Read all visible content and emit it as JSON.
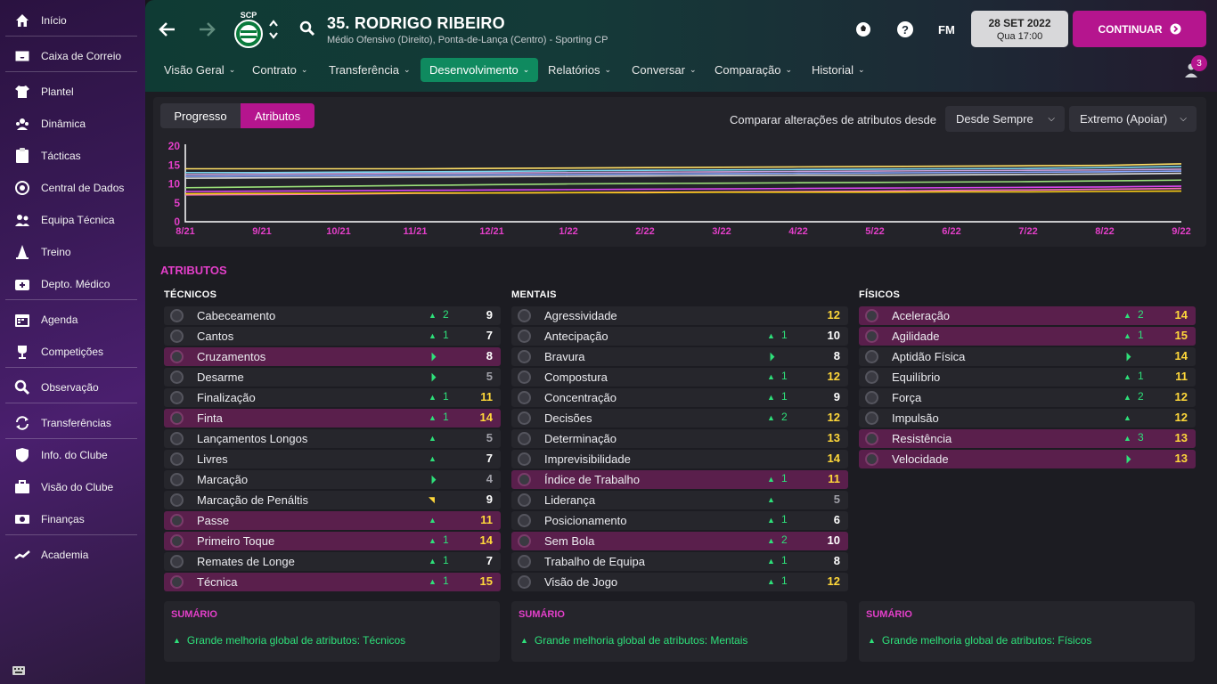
{
  "sidebar": {
    "items": [
      {
        "label": "Início",
        "icon": "home-icon"
      },
      {
        "label": "Caixa de Correio",
        "icon": "inbox-icon"
      },
      {
        "label": "Plantel",
        "icon": "shirt-icon"
      },
      {
        "label": "Dinâmica",
        "icon": "dynamics-icon"
      },
      {
        "label": "Tácticas",
        "icon": "tactics-board-icon"
      },
      {
        "label": "Central de Dados",
        "icon": "data-hub-icon"
      },
      {
        "label": "Equipa Técnica",
        "icon": "staff-icon"
      },
      {
        "label": "Treino",
        "icon": "training-cone-icon"
      },
      {
        "label": "Depto. Médico",
        "icon": "medical-kit-icon"
      },
      {
        "label": "Agenda",
        "icon": "calendar-icon"
      },
      {
        "label": "Competições",
        "icon": "trophy-icon"
      },
      {
        "label": "Observação",
        "icon": "magnifier-icon"
      },
      {
        "label": "Transferências",
        "icon": "transfer-arrows-icon"
      },
      {
        "label": "Info. do Clube",
        "icon": "club-shield-icon"
      },
      {
        "label": "Visão do Clube",
        "icon": "briefcase-icon"
      },
      {
        "label": "Finanças",
        "icon": "money-icon"
      },
      {
        "label": "Academia",
        "icon": "academy-trend-icon"
      }
    ]
  },
  "header": {
    "club_badge_text": "SCP",
    "player_name": "35. RODRIGO RIBEIRO",
    "player_subtitle": "Médio Ofensivo (Direito), Ponta-de-Lança (Centro) - Sporting CP",
    "fm_label": "FM",
    "date": "28 SET 2022",
    "time": "Qua 17:00",
    "continue_label": "CONTINUAR",
    "notifications": "3",
    "tabs": [
      {
        "label": "Visão Geral"
      },
      {
        "label": "Contrato"
      },
      {
        "label": "Transferência"
      },
      {
        "label": "Desenvolvimento"
      },
      {
        "label": "Relatórios"
      },
      {
        "label": "Conversar"
      },
      {
        "label": "Comparação"
      },
      {
        "label": "Historial"
      }
    ],
    "active_tab": "Desenvolvimento"
  },
  "controls": {
    "seg_progress": "Progresso",
    "seg_attributes": "Atributos",
    "compare_label": "Comparar alterações de atributos desde",
    "since_dropdown": "Desde Sempre",
    "role_dropdown": "Extremo (Apoiar)"
  },
  "colors": {
    "accent_magenta": "#b5158e",
    "highlight_row": "#5a1f4c",
    "active_tab": "#0f8a5f",
    "positive": "#2ee07a",
    "good_value": "#ffd83a"
  },
  "chart_data": {
    "type": "line",
    "x": [
      "8/21",
      "9/21",
      "10/21",
      "11/21",
      "12/21",
      "1/22",
      "2/22",
      "3/22",
      "4/22",
      "5/22",
      "6/22",
      "7/22",
      "8/22",
      "9/22"
    ],
    "yticks": [
      "20",
      "15",
      "10",
      "5",
      "0"
    ],
    "ylim": [
      0,
      20
    ],
    "grid": false,
    "legend": "none",
    "series": [
      {
        "color": "#ffe066",
        "values": [
          14,
          14,
          14,
          14,
          14.1,
          14.2,
          14.3,
          14.4,
          14.5,
          14.6,
          14.7,
          14.8,
          14.9,
          15.3
        ]
      },
      {
        "color": "#7ad7f0",
        "values": [
          13,
          13,
          13.1,
          13.2,
          13.3,
          13.5,
          13.6,
          13.7,
          13.8,
          13.9,
          14,
          14.1,
          14.3,
          14.6
        ]
      },
      {
        "color": "#c9a0dc",
        "values": [
          12.5,
          12.6,
          12.7,
          12.8,
          12.9,
          13,
          13.1,
          13.2,
          13.3,
          13.4,
          13.5,
          13.6,
          13.7,
          13.9
        ]
      },
      {
        "color": "#8aa8ff",
        "values": [
          12,
          12.1,
          12.2,
          12.3,
          12.4,
          12.5,
          12.6,
          12.7,
          12.8,
          12.9,
          13,
          13.1,
          13.2,
          13.4
        ]
      },
      {
        "color": "#e0e0e0",
        "values": [
          11.5,
          11.6,
          11.7,
          11.8,
          11.9,
          12,
          12.1,
          12.2,
          12.3,
          12.3,
          12.4,
          12.5,
          12.6,
          12.8
        ]
      },
      {
        "color": "#9be07a",
        "values": [
          9,
          9.2,
          9.4,
          9.6,
          9.8,
          10,
          10.1,
          10.2,
          10.3,
          10.4,
          10.5,
          10.6,
          10.8,
          11
        ]
      },
      {
        "color": "#d946ef",
        "values": [
          8,
          8.1,
          8.2,
          8.3,
          8.4,
          8.5,
          8.6,
          8.7,
          8.8,
          8.9,
          9,
          9.1,
          9.2,
          9.4
        ]
      },
      {
        "color": "#f472b6",
        "values": [
          7.1,
          7.2,
          7.3,
          7.5,
          7.6,
          7.7,
          7.8,
          7.9,
          8,
          8.1,
          8.3,
          8.4,
          8.6,
          8.8
        ]
      },
      {
        "color": "#facc15",
        "values": [
          7.4,
          7.5,
          7.5,
          7.6,
          7.6,
          7.7,
          7.7,
          7.8,
          7.8,
          7.8,
          7.9,
          7.9,
          8,
          8.1
        ]
      }
    ]
  },
  "attributes": {
    "section_title": "ATRIBUTOS",
    "columns": [
      {
        "title": "TÉCNICOS",
        "rows": [
          {
            "name": "Cabeceamento",
            "arrow": "up",
            "change": "2",
            "value": "9",
            "hl": false,
            "tier": "white"
          },
          {
            "name": "Cantos",
            "arrow": "up",
            "change": "1",
            "value": "7",
            "hl": false,
            "tier": "white"
          },
          {
            "name": "Cruzamentos",
            "arrow": "slight",
            "change": "",
            "value": "8",
            "hl": true,
            "tier": "white"
          },
          {
            "name": "Desarme",
            "arrow": "slight",
            "change": "",
            "value": "5",
            "hl": false,
            "tier": "grey"
          },
          {
            "name": "Finalização",
            "arrow": "up",
            "change": "1",
            "value": "11",
            "hl": false,
            "tier": "yellow"
          },
          {
            "name": "Finta",
            "arrow": "up",
            "change": "1",
            "value": "14",
            "hl": true,
            "tier": "yellow"
          },
          {
            "name": "Lançamentos Longos",
            "arrow": "up",
            "change": "",
            "value": "5",
            "hl": false,
            "tier": "grey"
          },
          {
            "name": "Livres",
            "arrow": "up",
            "change": "",
            "value": "7",
            "hl": false,
            "tier": "white"
          },
          {
            "name": "Marcação",
            "arrow": "slight",
            "change": "",
            "value": "4",
            "hl": false,
            "tier": "grey"
          },
          {
            "name": "Marcação de Penáltis",
            "arrow": "down",
            "change": "",
            "value": "9",
            "hl": false,
            "tier": "white"
          },
          {
            "name": "Passe",
            "arrow": "up",
            "change": "",
            "value": "11",
            "hl": true,
            "tier": "yellow"
          },
          {
            "name": "Primeiro Toque",
            "arrow": "up",
            "change": "1",
            "value": "14",
            "hl": true,
            "tier": "yellow"
          },
          {
            "name": "Remates de Longe",
            "arrow": "up",
            "change": "1",
            "value": "7",
            "hl": false,
            "tier": "white"
          },
          {
            "name": "Técnica",
            "arrow": "up",
            "change": "1",
            "value": "15",
            "hl": true,
            "tier": "yellow"
          }
        ],
        "summary_title": "SUMÁRIO",
        "summary_text": "Grande melhoria global de atributos: Técnicos"
      },
      {
        "title": "MENTAIS",
        "rows": [
          {
            "name": "Agressividade",
            "arrow": "",
            "change": "",
            "value": "12",
            "hl": false,
            "tier": "yellow"
          },
          {
            "name": "Antecipação",
            "arrow": "up",
            "change": "1",
            "value": "10",
            "hl": false,
            "tier": "white"
          },
          {
            "name": "Bravura",
            "arrow": "slight",
            "change": "",
            "value": "8",
            "hl": false,
            "tier": "white"
          },
          {
            "name": "Compostura",
            "arrow": "up",
            "change": "1",
            "value": "12",
            "hl": false,
            "tier": "yellow"
          },
          {
            "name": "Concentração",
            "arrow": "up",
            "change": "1",
            "value": "9",
            "hl": false,
            "tier": "white"
          },
          {
            "name": "Decisões",
            "arrow": "up",
            "change": "2",
            "value": "12",
            "hl": false,
            "tier": "yellow"
          },
          {
            "name": "Determinação",
            "arrow": "",
            "change": "",
            "value": "13",
            "hl": false,
            "tier": "yellow"
          },
          {
            "name": "Imprevisibilidade",
            "arrow": "",
            "change": "",
            "value": "14",
            "hl": false,
            "tier": "yellow"
          },
          {
            "name": "Índice de Trabalho",
            "arrow": "up",
            "change": "1",
            "value": "11",
            "hl": true,
            "tier": "yellow"
          },
          {
            "name": "Liderança",
            "arrow": "up",
            "change": "",
            "value": "5",
            "hl": false,
            "tier": "grey"
          },
          {
            "name": "Posicionamento",
            "arrow": "up",
            "change": "1",
            "value": "6",
            "hl": false,
            "tier": "white"
          },
          {
            "name": "Sem Bola",
            "arrow": "up",
            "change": "2",
            "value": "10",
            "hl": true,
            "tier": "white"
          },
          {
            "name": "Trabalho de Equipa",
            "arrow": "up",
            "change": "1",
            "value": "8",
            "hl": false,
            "tier": "white"
          },
          {
            "name": "Visão de Jogo",
            "arrow": "up",
            "change": "1",
            "value": "12",
            "hl": false,
            "tier": "yellow"
          }
        ],
        "summary_title": "SUMÁRIO",
        "summary_text": "Grande melhoria global de atributos: Mentais"
      },
      {
        "title": "FÍSICOS",
        "rows": [
          {
            "name": "Aceleração",
            "arrow": "up",
            "change": "2",
            "value": "14",
            "hl": true,
            "tier": "yellow"
          },
          {
            "name": "Agilidade",
            "arrow": "up",
            "change": "1",
            "value": "15",
            "hl": true,
            "tier": "yellow"
          },
          {
            "name": "Aptidão Física",
            "arrow": "slight",
            "change": "",
            "value": "14",
            "hl": false,
            "tier": "yellow"
          },
          {
            "name": "Equilíbrio",
            "arrow": "up",
            "change": "1",
            "value": "11",
            "hl": false,
            "tier": "yellow"
          },
          {
            "name": "Força",
            "arrow": "up",
            "change": "2",
            "value": "12",
            "hl": false,
            "tier": "yellow"
          },
          {
            "name": "Impulsão",
            "arrow": "up",
            "change": "",
            "value": "12",
            "hl": false,
            "tier": "yellow"
          },
          {
            "name": "Resistência",
            "arrow": "up",
            "change": "3",
            "value": "13",
            "hl": true,
            "tier": "yellow"
          },
          {
            "name": "Velocidade",
            "arrow": "slight",
            "change": "",
            "value": "13",
            "hl": true,
            "tier": "yellow"
          }
        ],
        "summary_title": "SUMÁRIO",
        "summary_text": "Grande melhoria global de atributos: Físicos"
      }
    ]
  }
}
